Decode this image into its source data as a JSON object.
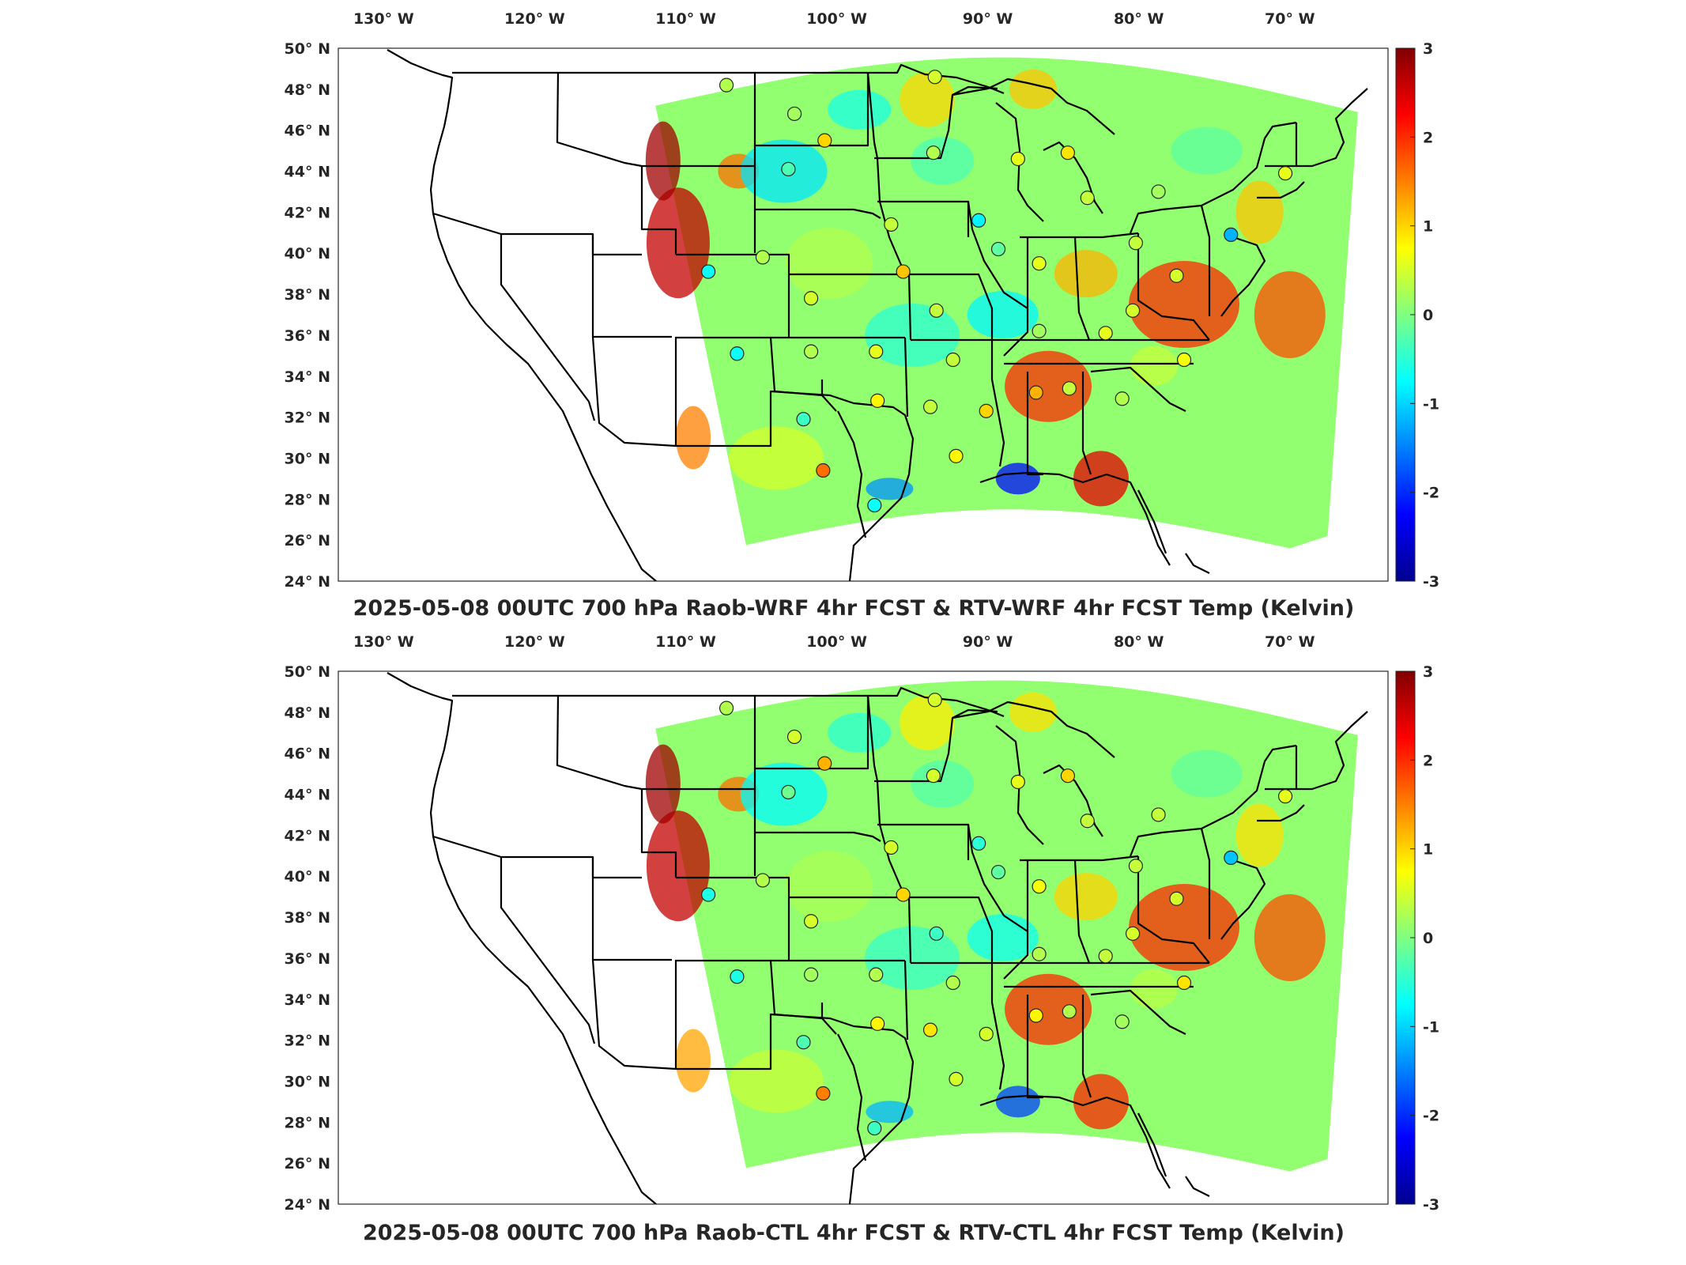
{
  "colors": {
    "colormap": [
      "#00008f",
      "#0000ff",
      "#0080ff",
      "#00ffff",
      "#80ff80",
      "#ffff00",
      "#ff8000",
      "#ff0000",
      "#800000"
    ],
    "states": "#000000",
    "frame": "#262626"
  },
  "colorbar": {
    "labels": [
      "3",
      "2",
      "1",
      "0",
      "-1",
      "-2",
      "-3"
    ]
  },
  "longitude_labels": [
    "130° W",
    "120° W",
    "110° W",
    "100° W",
    "90° W",
    "80° W",
    "70° W"
  ],
  "latitude_labels": [
    "50° N",
    "48° N",
    "46° N",
    "44° N",
    "42° N",
    "40° N",
    "38° N",
    "36° N",
    "34° N",
    "32° N",
    "30° N",
    "28° N",
    "26° N",
    "24° N"
  ],
  "panels": [
    {
      "title": "2025-05-08 00UTC 700 hPa Raob-WRF 4hr FCST & RTV-WRF 4hr FCST Temp (Kelvin)",
      "stations": [
        {
          "lon": -107.3,
          "lat": 48.2,
          "value": 0.3
        },
        {
          "lon": -93.5,
          "lat": 48.6,
          "value": 0.5
        },
        {
          "lon": -102.8,
          "lat": 46.8,
          "value": 0.2
        },
        {
          "lon": -100.8,
          "lat": 45.5,
          "value": 1.0
        },
        {
          "lon": -93.6,
          "lat": 44.9,
          "value": 0.3
        },
        {
          "lon": -88.0,
          "lat": 44.6,
          "value": 0.6
        },
        {
          "lon": -84.7,
          "lat": 44.9,
          "value": 0.9
        },
        {
          "lon": -103.2,
          "lat": 44.1,
          "value": -0.3
        },
        {
          "lon": -83.4,
          "lat": 42.7,
          "value": 0.4
        },
        {
          "lon": -78.7,
          "lat": 43.0,
          "value": 0.2
        },
        {
          "lon": -70.3,
          "lat": 43.9,
          "value": 0.6
        },
        {
          "lon": -96.4,
          "lat": 41.4,
          "value": 0.4
        },
        {
          "lon": -90.6,
          "lat": 41.6,
          "value": -0.8
        },
        {
          "lon": -73.9,
          "lat": 40.9,
          "value": -1.2
        },
        {
          "lon": -89.3,
          "lat": 40.2,
          "value": -0.2
        },
        {
          "lon": -80.2,
          "lat": 40.5,
          "value": 0.4
        },
        {
          "lon": -86.6,
          "lat": 39.5,
          "value": 0.6
        },
        {
          "lon": -108.5,
          "lat": 39.1,
          "value": -0.7
        },
        {
          "lon": -95.6,
          "lat": 39.1,
          "value": 1.1
        },
        {
          "lon": -104.9,
          "lat": 39.8,
          "value": 0.3
        },
        {
          "lon": -77.5,
          "lat": 38.9,
          "value": 0.5
        },
        {
          "lon": -101.7,
          "lat": 37.8,
          "value": 0.5
        },
        {
          "lon": -93.4,
          "lat": 37.2,
          "value": 0.4
        },
        {
          "lon": -80.4,
          "lat": 37.2,
          "value": 0.5
        },
        {
          "lon": -86.6,
          "lat": 36.2,
          "value": 0.2
        },
        {
          "lon": -82.2,
          "lat": 36.1,
          "value": 0.6
        },
        {
          "lon": -106.6,
          "lat": 35.1,
          "value": -0.7
        },
        {
          "lon": -101.7,
          "lat": 35.2,
          "value": 0.3
        },
        {
          "lon": -97.4,
          "lat": 35.2,
          "value": 0.6
        },
        {
          "lon": -92.3,
          "lat": 34.8,
          "value": 0.4
        },
        {
          "lon": -77.0,
          "lat": 34.8,
          "value": 0.7
        },
        {
          "lon": -97.3,
          "lat": 32.8,
          "value": 0.8
        },
        {
          "lon": -93.8,
          "lat": 32.5,
          "value": 0.4
        },
        {
          "lon": -90.1,
          "lat": 32.3,
          "value": 1.0
        },
        {
          "lon": -86.8,
          "lat": 33.2,
          "value": 1.2
        },
        {
          "lon": -84.6,
          "lat": 33.4,
          "value": 0.4
        },
        {
          "lon": -81.1,
          "lat": 32.9,
          "value": 0.3
        },
        {
          "lon": -102.2,
          "lat": 31.9,
          "value": -0.4
        },
        {
          "lon": -92.1,
          "lat": 30.1,
          "value": 0.8
        },
        {
          "lon": -100.9,
          "lat": 29.4,
          "value": 1.6
        },
        {
          "lon": -97.5,
          "lat": 27.7,
          "value": -0.7
        }
      ]
    },
    {
      "title": "2025-05-08 00UTC 700 hPa Raob-CTL 4hr FCST & RTV-CTL 4hr FCST Temp (Kelvin)",
      "stations": [
        {
          "lon": -107.3,
          "lat": 48.2,
          "value": 0.3
        },
        {
          "lon": -93.5,
          "lat": 48.6,
          "value": 0.5
        },
        {
          "lon": -102.8,
          "lat": 46.8,
          "value": 0.5
        },
        {
          "lon": -100.8,
          "lat": 45.5,
          "value": 1.2
        },
        {
          "lon": -93.6,
          "lat": 44.9,
          "value": 0.5
        },
        {
          "lon": -88.0,
          "lat": 44.6,
          "value": 0.6
        },
        {
          "lon": -84.7,
          "lat": 44.9,
          "value": 1.0
        },
        {
          "lon": -103.2,
          "lat": 44.1,
          "value": -0.1
        },
        {
          "lon": -83.4,
          "lat": 42.7,
          "value": 0.4
        },
        {
          "lon": -78.7,
          "lat": 43.0,
          "value": 0.4
        },
        {
          "lon": -70.3,
          "lat": 43.9,
          "value": 0.6
        },
        {
          "lon": -96.4,
          "lat": 41.4,
          "value": 0.5
        },
        {
          "lon": -90.6,
          "lat": 41.6,
          "value": -0.5
        },
        {
          "lon": -73.9,
          "lat": 40.9,
          "value": -1.1
        },
        {
          "lon": -89.3,
          "lat": 40.2,
          "value": -0.2
        },
        {
          "lon": -80.2,
          "lat": 40.5,
          "value": 0.4
        },
        {
          "lon": -86.6,
          "lat": 39.5,
          "value": 0.7
        },
        {
          "lon": -108.5,
          "lat": 39.1,
          "value": -0.6
        },
        {
          "lon": -95.6,
          "lat": 39.1,
          "value": 1.0
        },
        {
          "lon": -104.9,
          "lat": 39.8,
          "value": 0.3
        },
        {
          "lon": -77.5,
          "lat": 38.9,
          "value": 0.5
        },
        {
          "lon": -101.7,
          "lat": 37.8,
          "value": 0.5
        },
        {
          "lon": -93.4,
          "lat": 37.2,
          "value": -0.4
        },
        {
          "lon": -80.4,
          "lat": 37.2,
          "value": 0.5
        },
        {
          "lon": -86.6,
          "lat": 36.2,
          "value": 0.3
        },
        {
          "lon": -82.2,
          "lat": 36.1,
          "value": 0.4
        },
        {
          "lon": -106.6,
          "lat": 35.1,
          "value": -0.6
        },
        {
          "lon": -101.7,
          "lat": 35.2,
          "value": 0.2
        },
        {
          "lon": -97.4,
          "lat": 35.2,
          "value": 0.3
        },
        {
          "lon": -92.3,
          "lat": 34.8,
          "value": 0.3
        },
        {
          "lon": -77.0,
          "lat": 34.8,
          "value": 0.9
        },
        {
          "lon": -97.3,
          "lat": 32.8,
          "value": 0.8
        },
        {
          "lon": -93.8,
          "lat": 32.5,
          "value": 0.9
        },
        {
          "lon": -90.1,
          "lat": 32.3,
          "value": 0.5
        },
        {
          "lon": -86.8,
          "lat": 33.2,
          "value": 0.8
        },
        {
          "lon": -84.6,
          "lat": 33.4,
          "value": 0.3
        },
        {
          "lon": -81.1,
          "lat": 32.9,
          "value": 0.2
        },
        {
          "lon": -102.2,
          "lat": 31.9,
          "value": -0.3
        },
        {
          "lon": -92.1,
          "lat": 30.1,
          "value": 0.5
        },
        {
          "lon": -100.9,
          "lat": 29.4,
          "value": 1.5
        },
        {
          "lon": -97.5,
          "lat": 27.7,
          "value": -0.4
        }
      ]
    }
  ]
}
